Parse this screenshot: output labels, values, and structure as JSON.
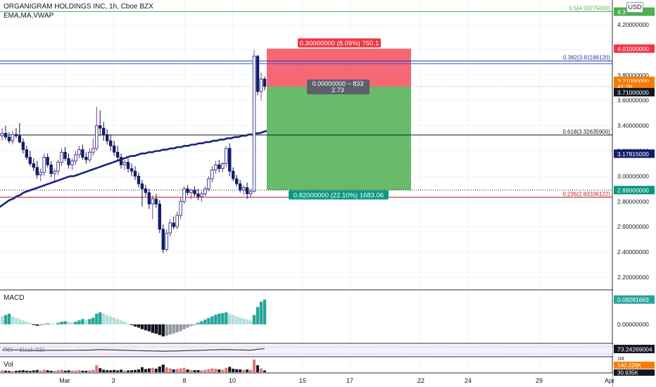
{
  "header": {
    "title": "ORGANIGRAM HOLDINGS INC, 1h, Cboe BZX",
    "indicators": "EMA,MA,VWAP",
    "currency": "USD"
  },
  "panes": {
    "macd_label": "MACD",
    "rsi_label": "RSI + Stoch RSI",
    "vol_label": "Vol"
  },
  "position": {
    "target_label": "0.30000000 (8.09%) 750.1",
    "center_label": "0.00000000 ~ 833",
    "center_ratio": "2.73",
    "stop_label": "0.82000000 (22.10%) 1683.06"
  },
  "fib_levels": [
    {
      "label": "0.5(4.30275000)",
      "price": 4.30275,
      "color": "#4caf50"
    },
    {
      "label": "0.382(3.91188120)",
      "price": 3.9118812,
      "color": "#283593"
    },
    {
      "label": "0.618(3.32635900)",
      "price": 3.326359,
      "color": "#131722"
    },
    {
      "label": "0.236(2.83336122)",
      "price": 2.83336122,
      "color": "#b71c1c"
    }
  ],
  "price_axis_labels": [
    "4.20000000",
    "4.00000000",
    "3.80000000",
    "3.60000000",
    "3.40000000",
    "3.20000000",
    "3.00000000",
    "2.80000000",
    "2.60000000",
    "2.40000000",
    "2.20000000"
  ],
  "price_axis_badges": [
    {
      "text": "4.3",
      "bg": "#4caf50",
      "fg": "#ffffff",
      "price": 4.30275
    },
    {
      "text": "4.01000000",
      "bg": "#f23645",
      "fg": "#ffffff",
      "price": 4.01
    },
    {
      "text": "3.71000000",
      "bg": "#f57c00",
      "fg": "#ffffff",
      "price": 3.755
    },
    {
      "text": "41:28",
      "bg": "#f57c00",
      "fg": "#ffffff",
      "price": 3.71
    },
    {
      "text": "3.71000000",
      "bg": "#131722",
      "fg": "#ffffff",
      "price": 3.665
    },
    {
      "text": "3.17815000",
      "bg": "#131c6e",
      "fg": "#ffffff",
      "price": 3.17815
    },
    {
      "text": "2.89000000",
      "bg": "#089981",
      "fg": "#ffffff",
      "price": 2.89
    }
  ],
  "macd_axis": {
    "labels": [
      "0.00000000"
    ],
    "badge": "0.09281663"
  },
  "rsi_axis": {
    "badge": "73.24269004"
  },
  "vol_axis": {
    "labels": [
      "1M"
    ],
    "badges": [
      "140.226K",
      "30.935K"
    ]
  },
  "x_axis_labels": [
    "Mar",
    "3",
    "8",
    "10",
    "15",
    "17",
    "22",
    "24",
    "29",
    "Apr"
  ],
  "chart_data": {
    "type": "candlestick",
    "title": "ORGANIGRAM HOLDINGS INC, 1h, Cboe BZX",
    "ylim": [
      2.1,
      4.33
    ],
    "candles": [
      [
        3.32,
        3.38,
        3.28,
        3.34
      ],
      [
        3.34,
        3.4,
        3.29,
        3.31
      ],
      [
        3.31,
        3.35,
        3.26,
        3.28
      ],
      [
        3.28,
        3.36,
        3.25,
        3.33
      ],
      [
        3.33,
        3.38,
        3.3,
        3.32
      ],
      [
        3.32,
        3.42,
        3.26,
        3.27
      ],
      [
        3.27,
        3.3,
        3.18,
        3.21
      ],
      [
        3.21,
        3.24,
        3.13,
        3.15
      ],
      [
        3.15,
        3.2,
        3.08,
        3.1
      ],
      [
        3.1,
        3.14,
        3.04,
        3.07
      ],
      [
        3.07,
        3.12,
        2.98,
        3.01
      ],
      [
        3.01,
        3.06,
        2.96,
        3.03
      ],
      [
        3.03,
        3.18,
        3.0,
        3.15
      ],
      [
        3.15,
        3.18,
        3.07,
        3.09
      ],
      [
        3.09,
        3.12,
        2.99,
        3.02
      ],
      [
        3.02,
        3.06,
        2.96,
        3.04
      ],
      [
        3.04,
        3.13,
        3.01,
        3.11
      ],
      [
        3.11,
        3.22,
        3.08,
        3.19
      ],
      [
        3.19,
        3.23,
        3.12,
        3.14
      ],
      [
        3.14,
        3.18,
        3.06,
        3.09
      ],
      [
        3.09,
        3.14,
        3.05,
        3.12
      ],
      [
        3.12,
        3.2,
        3.09,
        3.17
      ],
      [
        3.17,
        3.24,
        3.14,
        3.21
      ],
      [
        3.21,
        3.25,
        3.13,
        3.15
      ],
      [
        3.15,
        3.19,
        3.1,
        3.13
      ],
      [
        3.13,
        3.22,
        3.11,
        3.19
      ],
      [
        3.19,
        3.3,
        3.16,
        3.22
      ],
      [
        3.22,
        3.55,
        3.2,
        3.4
      ],
      [
        3.4,
        3.52,
        3.32,
        3.38
      ],
      [
        3.38,
        3.43,
        3.28,
        3.33
      ],
      [
        3.33,
        3.37,
        3.25,
        3.28
      ],
      [
        3.28,
        3.33,
        3.2,
        3.24
      ],
      [
        3.24,
        3.28,
        3.16,
        3.19
      ],
      [
        3.19,
        3.24,
        3.12,
        3.15
      ],
      [
        3.15,
        3.18,
        3.06,
        3.09
      ],
      [
        3.09,
        3.13,
        3.05,
        3.11
      ],
      [
        3.11,
        3.14,
        3.03,
        3.06
      ],
      [
        3.06,
        3.1,
        3.0,
        3.04
      ],
      [
        3.04,
        3.08,
        2.97,
        3.0
      ],
      [
        3.0,
        3.03,
        2.91,
        2.94
      ],
      [
        2.94,
        2.97,
        2.76,
        2.9
      ],
      [
        2.9,
        2.93,
        2.84,
        2.87
      ],
      [
        2.87,
        2.9,
        2.74,
        2.78
      ],
      [
        2.78,
        2.85,
        2.66,
        2.82
      ],
      [
        2.82,
        2.86,
        2.75,
        2.78
      ],
      [
        2.78,
        2.81,
        2.55,
        2.58
      ],
      [
        2.58,
        2.62,
        2.39,
        2.42
      ],
      [
        2.42,
        2.58,
        2.4,
        2.55
      ],
      [
        2.55,
        2.66,
        2.52,
        2.63
      ],
      [
        2.63,
        2.68,
        2.58,
        2.6
      ],
      [
        2.6,
        2.72,
        2.58,
        2.69
      ],
      [
        2.69,
        2.83,
        2.66,
        2.8
      ],
      [
        2.8,
        2.92,
        2.78,
        2.9
      ],
      [
        2.9,
        2.93,
        2.85,
        2.87
      ],
      [
        2.87,
        2.9,
        2.82,
        2.89
      ],
      [
        2.89,
        2.92,
        2.84,
        2.86
      ],
      [
        2.86,
        2.9,
        2.81,
        2.84
      ],
      [
        2.84,
        2.88,
        2.8,
        2.86
      ],
      [
        2.86,
        2.92,
        2.84,
        2.9
      ],
      [
        2.9,
        3.0,
        2.88,
        2.98
      ],
      [
        2.98,
        3.08,
        2.95,
        3.05
      ],
      [
        3.05,
        3.12,
        3.02,
        3.09
      ],
      [
        3.09,
        3.13,
        3.03,
        3.06
      ],
      [
        3.06,
        3.11,
        3.03,
        3.1
      ],
      [
        3.1,
        3.24,
        3.07,
        3.22
      ],
      [
        3.22,
        3.26,
        3.0,
        3.04
      ],
      [
        3.04,
        3.07,
        2.96,
        2.98
      ],
      [
        2.98,
        3.01,
        2.92,
        2.94
      ],
      [
        2.94,
        2.97,
        2.87,
        2.89
      ],
      [
        2.89,
        2.93,
        2.85,
        2.91
      ],
      [
        2.91,
        2.95,
        2.82,
        2.86
      ],
      [
        2.86,
        2.9,
        2.83,
        2.88
      ],
      [
        2.88,
        4.0,
        2.87,
        3.95
      ],
      [
        3.95,
        3.96,
        3.64,
        3.67
      ],
      [
        3.67,
        3.82,
        3.6,
        3.77
      ],
      [
        3.77,
        3.79,
        3.68,
        3.71
      ]
    ],
    "ma_line": [
      2.75,
      2.77,
      2.79,
      2.81,
      2.82,
      2.84,
      2.85,
      2.87,
      2.88,
      2.89,
      2.9,
      2.91,
      2.92,
      2.93,
      2.94,
      2.95,
      2.96,
      2.97,
      2.98,
      2.99,
      3.0,
      3.0,
      3.01,
      3.02,
      3.03,
      3.04,
      3.05,
      3.06,
      3.07,
      3.08,
      3.09,
      3.1,
      3.11,
      3.12,
      3.13,
      3.14,
      3.15,
      3.16,
      3.16,
      3.17,
      3.18,
      3.18,
      3.19,
      3.19,
      3.2,
      3.2,
      3.21,
      3.21,
      3.22,
      3.22,
      3.23,
      3.23,
      3.24,
      3.24,
      3.25,
      3.25,
      3.26,
      3.26,
      3.27,
      3.27,
      3.28,
      3.28,
      3.29,
      3.29,
      3.3,
      3.3,
      3.31,
      3.31,
      3.32,
      3.32,
      3.33,
      3.33,
      3.34,
      3.34,
      3.35,
      3.36
    ],
    "macd_hist": [
      0.03,
      0.035,
      0.04,
      0.03,
      0.025,
      0.02,
      0.015,
      0.01,
      0.005,
      -0.002,
      -0.005,
      -0.004,
      0.002,
      0.004,
      0.003,
      0.002,
      0.006,
      0.01,
      0.012,
      0.01,
      0.008,
      0.01,
      0.015,
      0.02,
      0.018,
      0.02,
      0.025,
      0.04,
      0.045,
      0.04,
      0.035,
      0.03,
      0.025,
      0.02,
      0.015,
      0.01,
      0.004,
      -0.003,
      -0.008,
      -0.012,
      -0.018,
      -0.022,
      -0.026,
      -0.032,
      -0.035,
      -0.04,
      -0.045,
      -0.042,
      -0.038,
      -0.034,
      -0.03,
      -0.025,
      -0.018,
      -0.012,
      -0.006,
      0.0,
      0.006,
      0.012,
      0.018,
      0.024,
      0.03,
      0.036,
      0.04,
      0.042,
      0.045,
      0.04,
      0.035,
      0.03,
      0.025,
      0.022,
      0.018,
      0.014,
      0.035,
      0.065,
      0.085,
      0.093
    ],
    "volume": [
      0.15,
      0.12,
      0.1,
      0.09,
      0.11,
      0.13,
      0.16,
      0.12,
      0.1,
      0.14,
      0.18,
      0.12,
      0.2,
      0.15,
      0.12,
      0.11,
      0.16,
      0.2,
      0.12,
      0.15,
      0.13,
      0.14,
      0.17,
      0.12,
      0.11,
      0.14,
      0.18,
      0.55,
      0.32,
      0.2,
      0.16,
      0.15,
      0.18,
      0.14,
      0.2,
      0.13,
      0.14,
      0.16,
      0.18,
      0.22,
      0.4,
      0.25,
      0.3,
      0.35,
      0.28,
      0.45,
      0.6,
      0.38,
      0.3,
      0.22,
      0.26,
      0.3,
      0.35,
      0.22,
      0.18,
      0.16,
      0.17,
      0.15,
      0.19,
      0.24,
      0.3,
      0.28,
      0.22,
      0.2,
      0.35,
      0.42,
      0.28,
      0.24,
      0.22,
      0.18,
      0.22,
      0.18,
      1.0,
      0.55,
      0.3,
      0.14
    ]
  }
}
